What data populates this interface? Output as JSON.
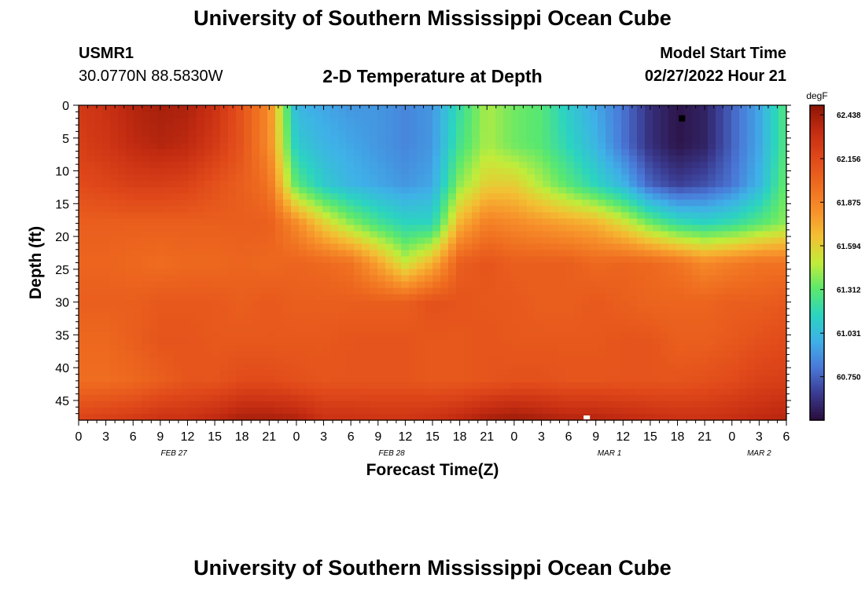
{
  "header": {
    "title": "University of Southern Mississippi Ocean Cube",
    "station": "USMR1",
    "coords": "30.0770N  88.5830W",
    "subtitle": "2-D Temperature at Depth",
    "model_start_label": "Model Start Time",
    "model_start_value": "02/27/2022 Hour 21",
    "footer_title": "University of Southern Mississippi Ocean Cube"
  },
  "chart_data": {
    "type": "heatmap",
    "title": "2-D Temperature at Depth",
    "xlabel": "Forecast Time(Z)",
    "ylabel": "Depth (ft)",
    "x_range_hours": [
      0,
      78
    ],
    "x_tick_labels": [
      "0",
      "3",
      "6",
      "9",
      "12",
      "15",
      "18",
      "21",
      "0",
      "3",
      "6",
      "9",
      "12",
      "15",
      "18",
      "21",
      "0",
      "3",
      "6",
      "9",
      "12",
      "15",
      "18",
      "21",
      "0",
      "3",
      "6"
    ],
    "date_labels": [
      {
        "label": "FEB 27",
        "hour": 10.5
      },
      {
        "label": "FEB 28",
        "hour": 34.5
      },
      {
        "label": "MAR 1",
        "hour": 58.5
      },
      {
        "label": "MAR 2",
        "hour": 75
      }
    ],
    "y_range_ft": [
      0,
      48
    ],
    "y_ticks": [
      0,
      5,
      10,
      15,
      20,
      25,
      30,
      35,
      40,
      45
    ],
    "y_inverted": true,
    "colorbar": {
      "unit": "degF",
      "tick_labels": [
        "62.438",
        "62.156",
        "61.875",
        "61.594",
        "61.312",
        "61.031",
        "60.750"
      ],
      "tick_values": [
        62.438,
        62.156,
        61.875,
        61.594,
        61.312,
        61.031,
        60.75
      ],
      "min": 60.47,
      "max": 62.5,
      "colors": [
        "#2a0d3c",
        "#3a3a8f",
        "#4a78d8",
        "#3fb0e8",
        "#2bd4c0",
        "#5be86e",
        "#c2ec3a",
        "#f3c033",
        "#f78f2a",
        "#ee6a1f",
        "#e0481a",
        "#c42c12",
        "#8c1505"
      ]
    },
    "grid_hours": [
      0,
      3,
      6,
      9,
      12,
      15,
      18,
      21,
      24,
      27,
      30,
      33,
      36,
      39,
      42,
      45,
      48,
      51,
      54,
      57,
      60,
      63,
      66,
      69,
      72,
      75,
      78
    ],
    "grid_depths_ft": [
      0,
      6,
      12,
      18,
      24,
      30,
      36,
      42,
      48
    ],
    "temperature_degF": [
      [
        62.25,
        62.3,
        62.38,
        62.42,
        62.4,
        62.3,
        62.1,
        61.85,
        61.0,
        60.95,
        60.9,
        60.9,
        60.85,
        60.9,
        61.2,
        61.45,
        61.35,
        61.3,
        61.1,
        60.95,
        60.8,
        60.6,
        60.5,
        60.55,
        60.75,
        60.95,
        61.3
      ],
      [
        62.22,
        62.27,
        62.34,
        62.38,
        62.35,
        62.25,
        62.1,
        61.85,
        61.1,
        61.0,
        60.95,
        60.9,
        60.85,
        60.9,
        61.25,
        61.45,
        61.35,
        61.3,
        61.15,
        61.0,
        60.8,
        60.6,
        60.5,
        60.55,
        60.75,
        60.95,
        61.3
      ],
      [
        62.15,
        62.18,
        62.22,
        62.22,
        62.2,
        62.12,
        62.05,
        61.95,
        61.3,
        61.1,
        61.0,
        60.95,
        60.9,
        60.95,
        61.4,
        61.6,
        61.6,
        61.45,
        61.3,
        61.15,
        61.0,
        60.75,
        60.65,
        60.7,
        60.8,
        61.0,
        61.35
      ],
      [
        62.05,
        62.05,
        62.05,
        62.05,
        62.05,
        62.05,
        62.05,
        62.05,
        61.85,
        61.6,
        61.4,
        61.25,
        61.15,
        61.15,
        61.7,
        61.9,
        61.85,
        61.8,
        61.75,
        61.7,
        61.55,
        61.35,
        61.2,
        61.15,
        61.2,
        61.3,
        61.4
      ],
      [
        62.02,
        62.02,
        62.0,
        61.98,
        62.0,
        62.0,
        62.02,
        62.0,
        62.02,
        62.0,
        61.95,
        61.75,
        61.5,
        61.7,
        62.05,
        62.1,
        62.05,
        62.05,
        62.05,
        62.0,
        62.02,
        62.0,
        61.95,
        61.85,
        61.9,
        61.95,
        61.95
      ],
      [
        62.05,
        62.05,
        62.05,
        62.08,
        62.08,
        62.08,
        62.05,
        62.08,
        62.05,
        62.05,
        62.05,
        62.05,
        62.05,
        62.12,
        62.1,
        62.08,
        62.08,
        62.05,
        62.05,
        62.08,
        62.05,
        62.02,
        62.02,
        62.02,
        62.05,
        62.05,
        62.08
      ],
      [
        62.0,
        62.0,
        62.05,
        62.1,
        62.1,
        62.08,
        62.08,
        62.08,
        62.08,
        62.08,
        62.1,
        62.1,
        62.1,
        62.08,
        62.08,
        62.1,
        62.08,
        62.08,
        62.08,
        62.08,
        62.1,
        62.1,
        62.05,
        62.05,
        62.08,
        62.12,
        62.15
      ],
      [
        61.98,
        61.98,
        62.0,
        62.05,
        62.1,
        62.1,
        62.15,
        62.15,
        62.12,
        62.1,
        62.1,
        62.1,
        62.1,
        62.08,
        62.08,
        62.1,
        62.12,
        62.12,
        62.1,
        62.1,
        62.1,
        62.1,
        62.1,
        62.12,
        62.15,
        62.2,
        62.22
      ],
      [
        62.2,
        62.22,
        62.25,
        62.3,
        62.3,
        62.35,
        62.42,
        62.42,
        62.4,
        62.3,
        62.3,
        62.28,
        62.28,
        62.3,
        62.35,
        62.42,
        62.45,
        62.42,
        62.38,
        62.38,
        62.35,
        62.32,
        62.3,
        62.3,
        62.32,
        62.35,
        62.38
      ]
    ],
    "markers": [
      {
        "name": "minimum",
        "hour": 66.5,
        "depth_ft": 2,
        "color": "#000000"
      },
      {
        "name": "maximum",
        "hour": 56,
        "depth_ft": 48,
        "color": "#ffffff"
      }
    ],
    "grid": false
  }
}
